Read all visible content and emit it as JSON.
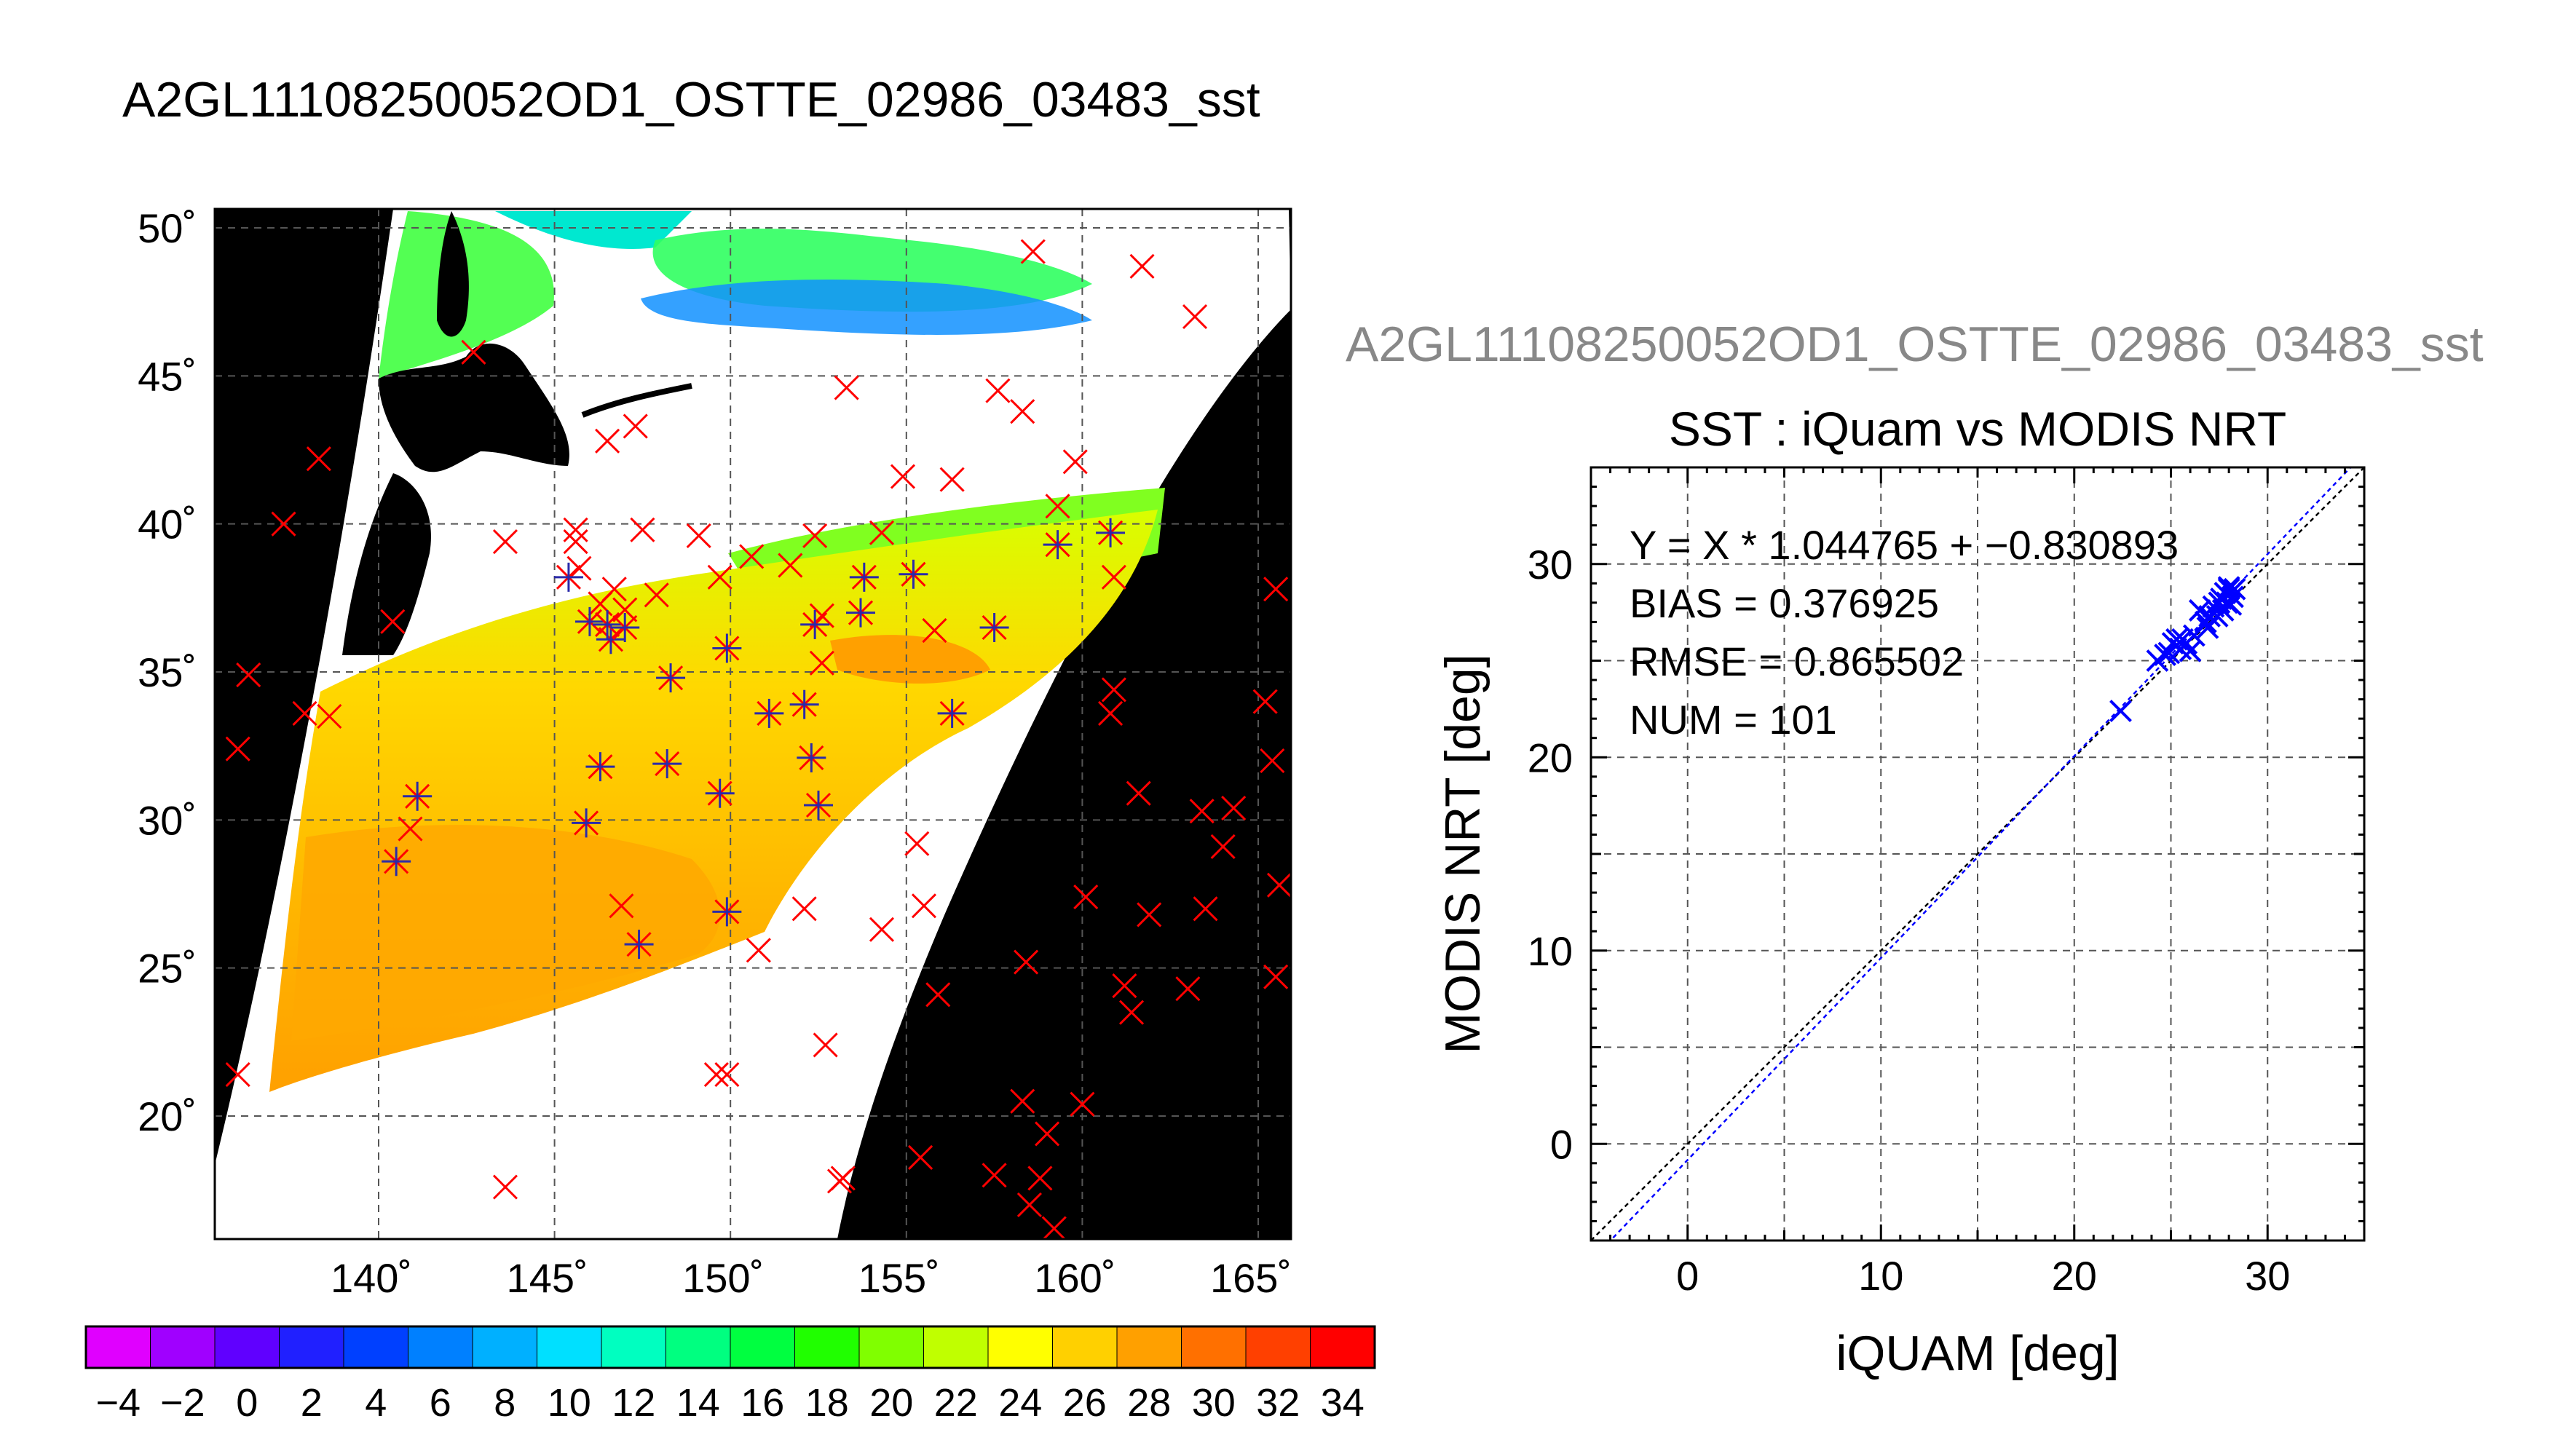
{
  "main_title": "A2GL11108250052OD1_OSTTE_02986_03483_sst",
  "map": {
    "lat_ticks": [
      "50˚",
      "45˚",
      "40˚",
      "35˚",
      "30˚",
      "25˚",
      "20˚"
    ],
    "lon_ticks": [
      "140˚",
      "145˚",
      "150˚",
      "155˚",
      "160˚",
      "165˚"
    ],
    "lat_values": [
      50,
      45,
      40,
      35,
      30,
      25,
      20
    ],
    "lon_values": [
      140,
      145,
      150,
      155,
      160,
      165
    ],
    "colors": {
      "land": "#000000",
      "cloud": "#ffffff",
      "match": "#ff0000",
      "matched_star": "#2a2aaa"
    },
    "matchups_red": [
      [
        158.6,
        49.2
      ],
      [
        161.7,
        48.7
      ],
      [
        163.2,
        47.0
      ],
      [
        142.7,
        45.8
      ],
      [
        153.3,
        44.6
      ],
      [
        157.6,
        44.5
      ],
      [
        146.5,
        42.8
      ],
      [
        147.3,
        43.3
      ],
      [
        158.3,
        43.8
      ],
      [
        159.8,
        42.1
      ],
      [
        154.9,
        41.6
      ],
      [
        156.3,
        41.5
      ],
      [
        138.3,
        42.2
      ],
      [
        137.3,
        40.0
      ],
      [
        143.6,
        39.4
      ],
      [
        145.6,
        39.4
      ],
      [
        147.5,
        39.8
      ],
      [
        149.1,
        39.6
      ],
      [
        150.6,
        38.9
      ],
      [
        152.4,
        39.6
      ],
      [
        154.3,
        39.7
      ],
      [
        159.3,
        40.6
      ],
      [
        160.9,
        38.2
      ],
      [
        145.7,
        38.5
      ],
      [
        146.7,
        37.8
      ],
      [
        147.9,
        37.6
      ],
      [
        149.7,
        38.2
      ],
      [
        151.7,
        38.6
      ],
      [
        152.6,
        36.9
      ],
      [
        155.8,
        36.4
      ],
      [
        165.5,
        37.8
      ],
      [
        140.4,
        36.7
      ],
      [
        146.3,
        37.3
      ],
      [
        160.9,
        34.4
      ],
      [
        160.8,
        33.6
      ],
      [
        165.2,
        34.0
      ],
      [
        136.3,
        34.9
      ],
      [
        137.9,
        33.6
      ],
      [
        138.6,
        33.5
      ],
      [
        136.0,
        32.4
      ],
      [
        165.4,
        32.0
      ],
      [
        140.9,
        29.7
      ],
      [
        155.3,
        29.2
      ],
      [
        161.6,
        30.9
      ],
      [
        163.4,
        30.3
      ],
      [
        164.3,
        30.4
      ],
      [
        164.0,
        29.1
      ],
      [
        146.9,
        27.1
      ],
      [
        152.1,
        27.0
      ],
      [
        155.5,
        27.1
      ],
      [
        160.1,
        27.4
      ],
      [
        161.9,
        26.8
      ],
      [
        163.5,
        27.0
      ],
      [
        165.6,
        27.8
      ],
      [
        150.8,
        25.6
      ],
      [
        154.3,
        26.3
      ],
      [
        158.4,
        25.2
      ],
      [
        155.9,
        24.1
      ],
      [
        161.2,
        24.4
      ],
      [
        161.4,
        23.5
      ],
      [
        163.0,
        24.3
      ],
      [
        165.5,
        24.7
      ],
      [
        152.7,
        22.4
      ],
      [
        149.6,
        21.4
      ],
      [
        149.9,
        21.4
      ],
      [
        136.0,
        21.4
      ],
      [
        158.3,
        20.5
      ],
      [
        159.0,
        19.4
      ],
      [
        160.0,
        20.4
      ],
      [
        155.4,
        18.6
      ],
      [
        157.5,
        18.0
      ],
      [
        153.2,
        17.9
      ],
      [
        153.1,
        17.8
      ],
      [
        143.6,
        17.6
      ],
      [
        158.8,
        17.9
      ],
      [
        158.5,
        17.0
      ],
      [
        159.2,
        16.2
      ],
      [
        145.6,
        39.8
      ],
      [
        147.0,
        37.1
      ],
      [
        152.6,
        35.3
      ]
    ],
    "matchups_star": [
      [
        145.4,
        38.2
      ],
      [
        146.0,
        36.7
      ],
      [
        146.6,
        36.1
      ],
      [
        146.5,
        36.6
      ],
      [
        147.0,
        36.5
      ],
      [
        148.3,
        34.8
      ],
      [
        149.9,
        35.8
      ],
      [
        151.1,
        33.6
      ],
      [
        152.1,
        33.9
      ],
      [
        152.4,
        36.6
      ],
      [
        153.8,
        38.2
      ],
      [
        153.7,
        37.0
      ],
      [
        155.2,
        38.3
      ],
      [
        157.5,
        36.5
      ],
      [
        156.3,
        33.6
      ],
      [
        159.3,
        39.3
      ],
      [
        160.8,
        39.7
      ],
      [
        152.3,
        32.1
      ],
      [
        152.5,
        30.5
      ],
      [
        149.7,
        30.9
      ],
      [
        148.2,
        31.9
      ],
      [
        146.3,
        31.8
      ],
      [
        145.9,
        29.9
      ],
      [
        141.1,
        30.8
      ],
      [
        140.5,
        28.6
      ],
      [
        147.4,
        25.8
      ],
      [
        149.9,
        26.9
      ]
    ]
  },
  "colorbar": {
    "ticks": [
      "−4",
      "−2",
      "0",
      "2",
      "4",
      "6",
      "8",
      "10",
      "12",
      "14",
      "16",
      "18",
      "20",
      "22",
      "24",
      "26",
      "28",
      "30",
      "32",
      "34"
    ],
    "range": [
      -5,
      35
    ],
    "stops": [
      "#e000ff",
      "#a000ff",
      "#6000ff",
      "#2020ff",
      "#0040ff",
      "#0080ff",
      "#00b0ff",
      "#00e0ff",
      "#00ffc0",
      "#00ff80",
      "#00ff40",
      "#20ff00",
      "#80ff00",
      "#c0ff00",
      "#ffff00",
      "#ffd000",
      "#ffa000",
      "#ff7000",
      "#ff4000",
      "#ff0000"
    ]
  },
  "scatter_title_top": "A2GL11108250052OD1_OSTTE_02986_03483_sst",
  "chart_data": {
    "type": "scatter",
    "title": "SST : iQuam vs MODIS NRT",
    "xlabel": "iQUAM [deg]",
    "ylabel": "MODIS NRT [deg]",
    "xlim": [
      -5,
      35
    ],
    "ylim": [
      -5,
      35
    ],
    "x_ticks": [
      "0",
      "10",
      "20",
      "30"
    ],
    "y_ticks": [
      "0",
      "10",
      "20",
      "30"
    ],
    "grid": true,
    "annotations": [
      "Y = X * 1.044765 + −0.830893",
      "BIAS = 0.376925",
      "RMSE = 0.865502",
      "NUM = 101"
    ],
    "fit": {
      "slope": 1.044765,
      "intercept": -0.830893
    },
    "x": [
      22.4,
      24.3,
      24.7,
      25.1,
      25.3,
      25.5,
      25.8,
      26.0,
      26.2,
      26.5,
      26.8,
      27.0,
      27.2,
      27.4,
      27.6,
      27.8,
      27.9,
      28.0,
      28.1,
      28.2,
      28.3,
      25.6,
      26.9,
      27.5,
      27.7,
      28.0,
      24.9
    ],
    "y": [
      22.4,
      25.0,
      25.3,
      25.9,
      26.1,
      25.6,
      25.9,
      25.5,
      26.3,
      27.6,
      27.0,
      27.3,
      27.8,
      27.3,
      28.2,
      28.5,
      28.0,
      28.7,
      27.9,
      28.3,
      28.7,
      26.1,
      26.7,
      28.0,
      27.6,
      28.8,
      25.4
    ]
  }
}
